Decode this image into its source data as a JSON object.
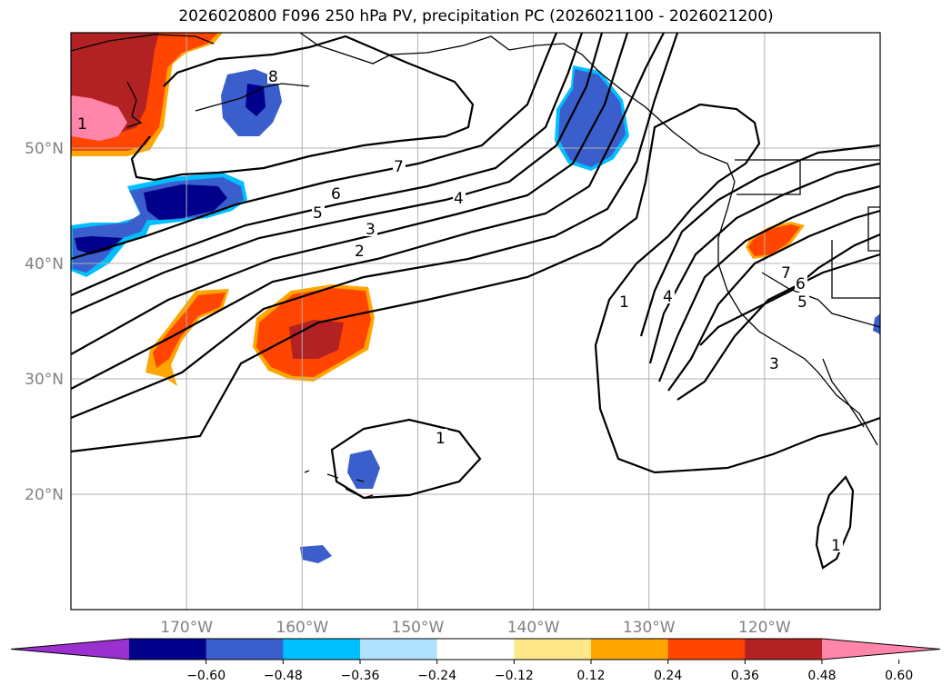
{
  "title": "2026020800 F096 250 hPa PV, precipitation PC (2026021100 - 2026021200)",
  "map": {
    "lat_labels": [
      "50°N",
      "40°N",
      "30°N",
      "20°N"
    ],
    "lon_labels": [
      "170°W",
      "160°W",
      "150°W",
      "140°W",
      "130°W",
      "120°W"
    ],
    "lat_values": [
      50,
      40,
      30,
      20
    ],
    "lon_values": [
      -170,
      -160,
      -150,
      -140,
      -130,
      -120
    ],
    "lon_range": [
      -180,
      -110
    ],
    "lat_range": [
      10,
      60
    ],
    "contour_labels": [
      "8",
      "7",
      "6",
      "5",
      "4",
      "3",
      "2",
      "1",
      "1",
      "1",
      "4",
      "7",
      "6",
      "5",
      "3",
      "1"
    ]
  },
  "colorbar": {
    "ticks": [
      "−0.60",
      "−0.48",
      "−0.36",
      "−0.24",
      "−0.12",
      "0.12",
      "0.24",
      "0.36",
      "0.48",
      "0.60"
    ],
    "colors": [
      "#9b30d0",
      "#00008b",
      "#3a5fcd",
      "#00bfff",
      "#b0e2ff",
      "#ffffff",
      "#ffe88a",
      "#ffa500",
      "#ff4500",
      "#b22222",
      "#ff85aa"
    ]
  },
  "palette": {
    "grid": "#b0b0b0",
    "contour": "#000000",
    "coast": "#000000"
  }
}
